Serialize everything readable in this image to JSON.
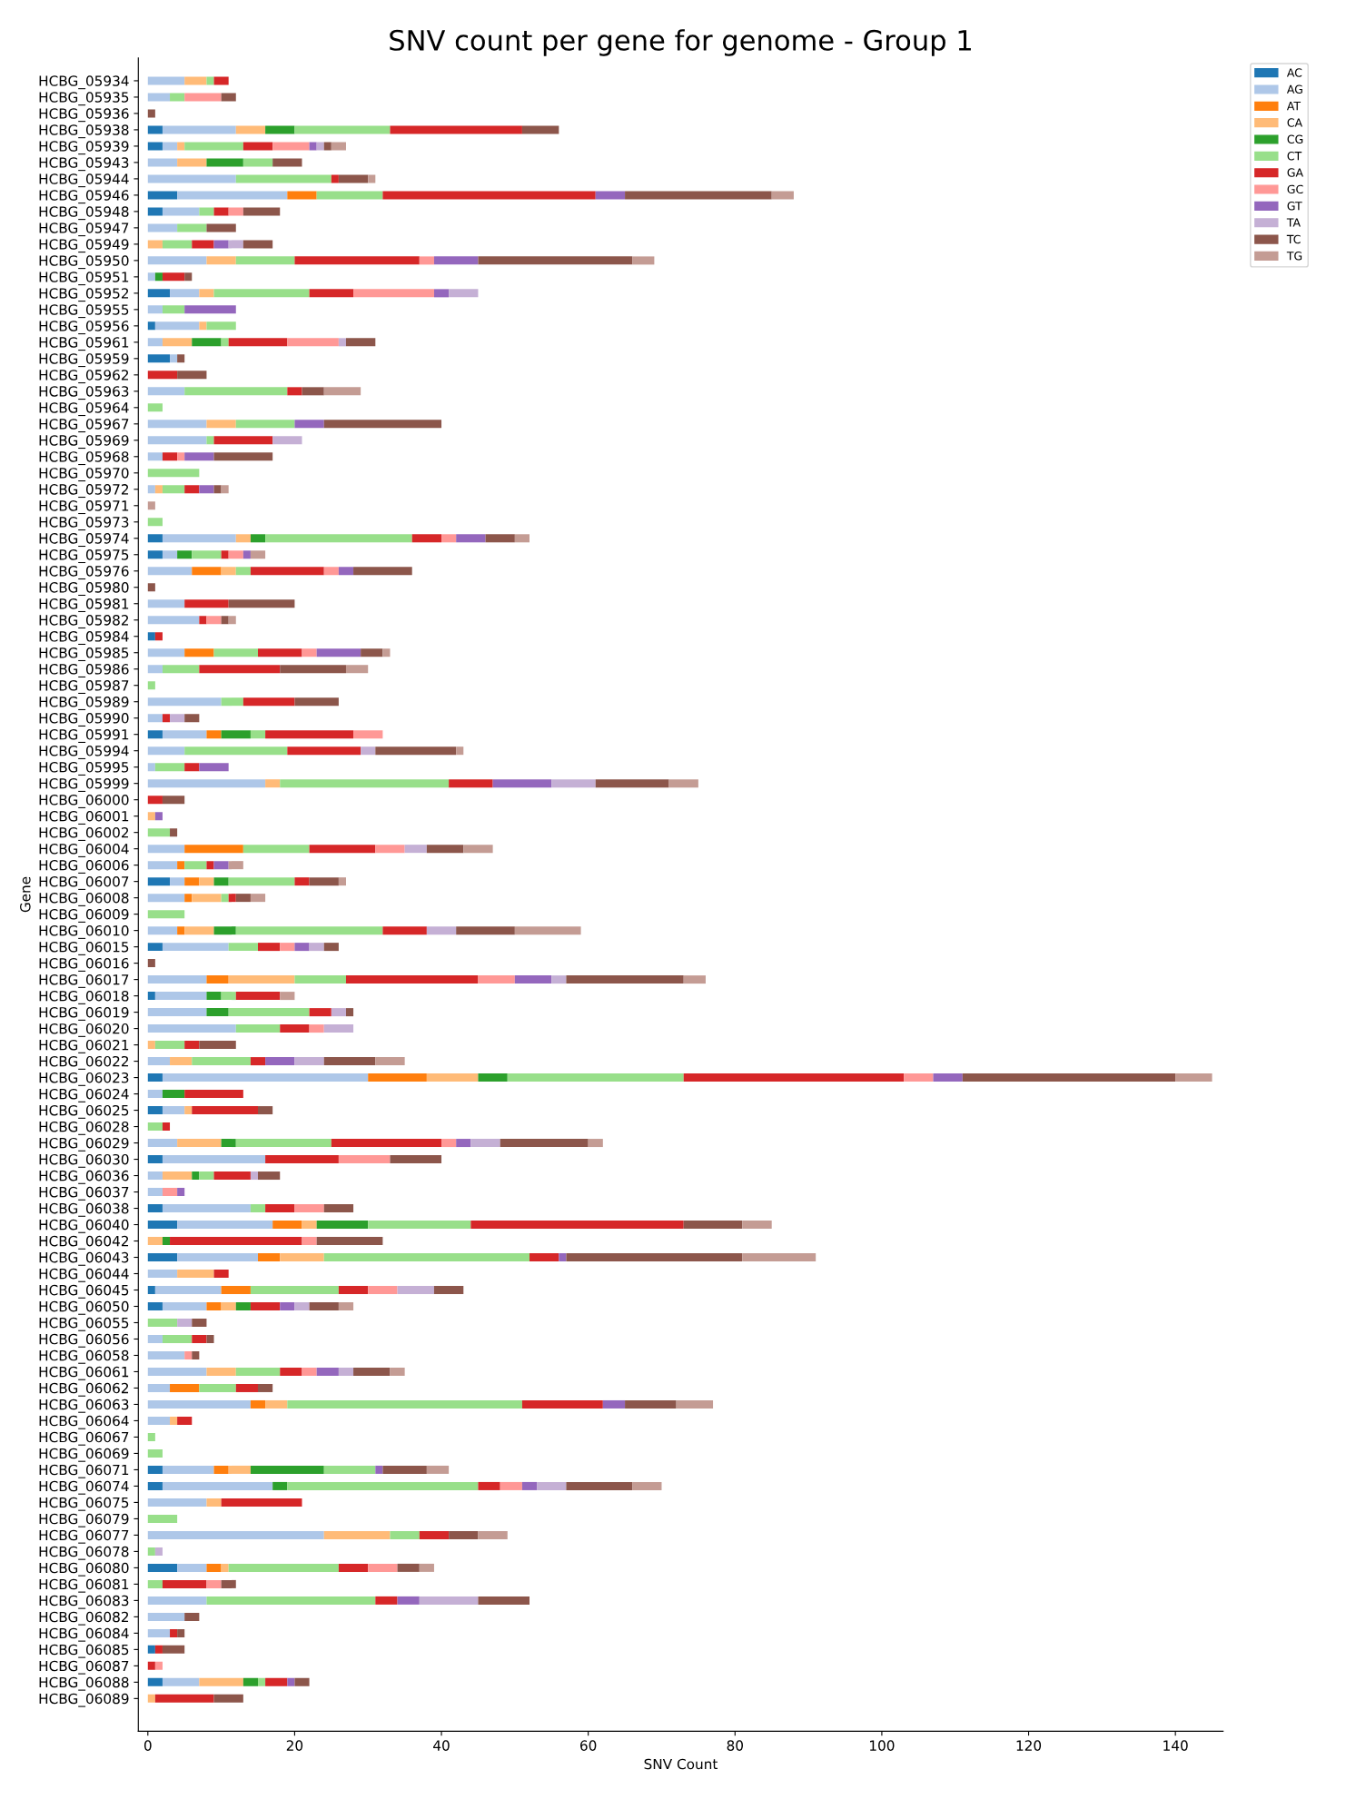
{
  "chart_data": {
    "type": "bar",
    "orientation": "horizontal",
    "stacked": true,
    "title": "SNV count per gene for genome - Group 1",
    "xlabel": "SNV Count",
    "ylabel": "Gene",
    "categories": [
      "HCBG_05934",
      "HCBG_05935",
      "HCBG_05936",
      "HCBG_05938",
      "HCBG_05939",
      "HCBG_05943",
      "HCBG_05944",
      "HCBG_05946",
      "HCBG_05948",
      "HCBG_05947",
      "HCBG_05949",
      "HCBG_05950",
      "HCBG_05951",
      "HCBG_05952",
      "HCBG_05955",
      "HCBG_05956",
      "HCBG_05961",
      "HCBG_05959",
      "HCBG_05962",
      "HCBG_05963",
      "HCBG_05964",
      "HCBG_05967",
      "HCBG_05969",
      "HCBG_05968",
      "HCBG_05970",
      "HCBG_05972",
      "HCBG_05971",
      "HCBG_05973",
      "HCBG_05974",
      "HCBG_05975",
      "HCBG_05976",
      "HCBG_05980",
      "HCBG_05981",
      "HCBG_05982",
      "HCBG_05984",
      "HCBG_05985",
      "HCBG_05986",
      "HCBG_05987",
      "HCBG_05989",
      "HCBG_05990",
      "HCBG_05991",
      "HCBG_05994",
      "HCBG_05995",
      "HCBG_05999",
      "HCBG_06000",
      "HCBG_06001",
      "HCBG_06002",
      "HCBG_06004",
      "HCBG_06006",
      "HCBG_06007",
      "HCBG_06008",
      "HCBG_06009",
      "HCBG_06010",
      "HCBG_06015",
      "HCBG_06016",
      "HCBG_06017",
      "HCBG_06018",
      "HCBG_06019",
      "HCBG_06020",
      "HCBG_06021",
      "HCBG_06022",
      "HCBG_06023",
      "HCBG_06024",
      "HCBG_06025",
      "HCBG_06028",
      "HCBG_06029",
      "HCBG_06030",
      "HCBG_06036",
      "HCBG_06037",
      "HCBG_06038",
      "HCBG_06040",
      "HCBG_06042",
      "HCBG_06043",
      "HCBG_06044",
      "HCBG_06045",
      "HCBG_06050",
      "HCBG_06055",
      "HCBG_06056",
      "HCBG_06058",
      "HCBG_06061",
      "HCBG_06062",
      "HCBG_06063",
      "HCBG_06064",
      "HCBG_06067",
      "HCBG_06069",
      "HCBG_06071",
      "HCBG_06074",
      "HCBG_06075",
      "HCBG_06079",
      "HCBG_06077",
      "HCBG_06078",
      "HCBG_06080",
      "HCBG_06081",
      "HCBG_06083",
      "HCBG_06082",
      "HCBG_06084",
      "HCBG_06085",
      "HCBG_06087",
      "HCBG_06088",
      "HCBG_06089"
    ],
    "series": [
      {
        "name": "AC",
        "color": "#1f77b4",
        "values": [
          0,
          0,
          0,
          2,
          2,
          0,
          0,
          4,
          2,
          0,
          0,
          0,
          0,
          3,
          0,
          1,
          0,
          3,
          0,
          0,
          0,
          0,
          0,
          0,
          0,
          0,
          0,
          0,
          2,
          2,
          0,
          0,
          0,
          0,
          1,
          0,
          0,
          0,
          0,
          0,
          2,
          0,
          0,
          0,
          0,
          0,
          0,
          0,
          0,
          3,
          0,
          0,
          0,
          2,
          0,
          0,
          1,
          0,
          0,
          0,
          0,
          2,
          0,
          2,
          0,
          0,
          2,
          0,
          0,
          2,
          4,
          0,
          4,
          0,
          1,
          2,
          0,
          0,
          0,
          0,
          0,
          0,
          0,
          0,
          0,
          2,
          2,
          0,
          0,
          0,
          0,
          4,
          0,
          0,
          0,
          0,
          1,
          0,
          2,
          0
        ]
      },
      {
        "name": "AG",
        "color": "#aec7e8",
        "values": [
          5,
          3,
          0,
          10,
          2,
          4,
          12,
          15,
          5,
          4,
          0,
          8,
          1,
          4,
          2,
          6,
          2,
          1,
          0,
          5,
          0,
          8,
          8,
          2,
          0,
          1,
          0,
          0,
          10,
          2,
          6,
          0,
          5,
          7,
          0,
          5,
          2,
          0,
          10,
          2,
          6,
          5,
          1,
          16,
          0,
          0,
          0,
          5,
          4,
          2,
          5,
          0,
          4,
          9,
          0,
          8,
          7,
          8,
          12,
          0,
          3,
          28,
          2,
          3,
          0,
          4,
          14,
          2,
          2,
          12,
          13,
          0,
          11,
          4,
          9,
          6,
          0,
          2,
          5,
          8,
          3,
          14,
          3,
          0,
          0,
          7,
          15,
          8,
          0,
          24,
          0,
          4,
          0,
          8,
          5,
          3,
          0,
          0,
          5,
          0
        ]
      },
      {
        "name": "AT",
        "color": "#ff7f0e",
        "values": [
          0,
          0,
          0,
          0,
          0,
          0,
          0,
          4,
          0,
          0,
          0,
          0,
          0,
          0,
          0,
          0,
          0,
          0,
          0,
          0,
          0,
          0,
          0,
          0,
          0,
          0,
          0,
          0,
          0,
          0,
          4,
          0,
          0,
          0,
          0,
          4,
          0,
          0,
          0,
          0,
          2,
          0,
          0,
          0,
          0,
          0,
          0,
          8,
          1,
          2,
          1,
          0,
          1,
          0,
          0,
          3,
          0,
          0,
          0,
          0,
          0,
          8,
          0,
          0,
          0,
          0,
          0,
          0,
          0,
          0,
          4,
          0,
          3,
          0,
          4,
          2,
          0,
          0,
          0,
          0,
          4,
          2,
          0,
          0,
          0,
          2,
          0,
          0,
          0,
          0,
          0,
          2,
          0,
          0,
          0,
          0,
          0,
          0,
          0,
          0
        ]
      },
      {
        "name": "CA",
        "color": "#ffbb78",
        "values": [
          3,
          0,
          0,
          4,
          1,
          4,
          0,
          0,
          0,
          0,
          2,
          4,
          0,
          2,
          0,
          1,
          4,
          0,
          0,
          0,
          0,
          4,
          0,
          0,
          0,
          1,
          0,
          0,
          2,
          0,
          2,
          0,
          0,
          0,
          0,
          0,
          0,
          0,
          0,
          0,
          0,
          0,
          0,
          2,
          0,
          1,
          0,
          0,
          0,
          2,
          4,
          0,
          4,
          0,
          0,
          9,
          0,
          0,
          0,
          1,
          3,
          7,
          0,
          1,
          0,
          6,
          0,
          4,
          0,
          0,
          2,
          2,
          6,
          5,
          0,
          2,
          0,
          0,
          0,
          4,
          0,
          3,
          1,
          0,
          0,
          3,
          0,
          2,
          0,
          9,
          0,
          1,
          0,
          0,
          0,
          0,
          0,
          0,
          6,
          1
        ]
      },
      {
        "name": "CG",
        "color": "#2ca02c",
        "values": [
          0,
          0,
          0,
          4,
          0,
          5,
          0,
          0,
          0,
          0,
          0,
          0,
          1,
          0,
          0,
          0,
          4,
          0,
          0,
          0,
          0,
          0,
          0,
          0,
          0,
          0,
          0,
          0,
          2,
          2,
          0,
          0,
          0,
          0,
          0,
          0,
          0,
          0,
          0,
          0,
          4,
          0,
          0,
          0,
          0,
          0,
          0,
          0,
          0,
          2,
          0,
          0,
          3,
          0,
          0,
          0,
          2,
          3,
          0,
          0,
          0,
          4,
          3,
          0,
          0,
          2,
          0,
          1,
          0,
          0,
          7,
          1,
          0,
          0,
          0,
          2,
          0,
          0,
          0,
          0,
          0,
          0,
          0,
          0,
          0,
          10,
          2,
          0,
          0,
          0,
          0,
          0,
          0,
          0,
          0,
          0,
          0,
          0,
          2,
          0
        ]
      },
      {
        "name": "CT",
        "color": "#98df8a",
        "values": [
          1,
          2,
          0,
          13,
          8,
          4,
          13,
          9,
          2,
          4,
          4,
          8,
          0,
          13,
          3,
          4,
          1,
          0,
          0,
          14,
          2,
          8,
          1,
          0,
          7,
          3,
          0,
          2,
          20,
          4,
          2,
          0,
          0,
          0,
          0,
          6,
          5,
          1,
          3,
          0,
          2,
          14,
          4,
          23,
          0,
          0,
          3,
          9,
          3,
          9,
          1,
          5,
          20,
          4,
          0,
          7,
          2,
          11,
          6,
          4,
          8,
          24,
          0,
          0,
          2,
          13,
          0,
          2,
          0,
          2,
          14,
          0,
          28,
          0,
          12,
          0,
          4,
          4,
          0,
          6,
          5,
          32,
          0,
          1,
          2,
          7,
          26,
          0,
          4,
          4,
          1,
          15,
          2,
          23,
          0,
          0,
          0,
          0,
          1,
          0
        ]
      },
      {
        "name": "GA",
        "color": "#d62728",
        "values": [
          2,
          0,
          0,
          18,
          4,
          0,
          1,
          29,
          2,
          0,
          3,
          17,
          3,
          6,
          0,
          0,
          8,
          0,
          4,
          2,
          0,
          0,
          8,
          2,
          0,
          2,
          0,
          0,
          4,
          1,
          10,
          0,
          6,
          1,
          1,
          6,
          11,
          0,
          7,
          1,
          12,
          10,
          2,
          6,
          2,
          0,
          0,
          9,
          1,
          2,
          1,
          0,
          6,
          3,
          0,
          18,
          6,
          3,
          4,
          2,
          2,
          30,
          8,
          9,
          1,
          15,
          10,
          5,
          0,
          4,
          29,
          18,
          4,
          2,
          4,
          4,
          0,
          2,
          0,
          3,
          3,
          11,
          2,
          0,
          0,
          0,
          3,
          11,
          0,
          4,
          0,
          4,
          6,
          3,
          0,
          1,
          1,
          1,
          3,
          8
        ]
      },
      {
        "name": "GC",
        "color": "#ff9896",
        "values": [
          0,
          5,
          0,
          0,
          5,
          0,
          0,
          0,
          2,
          0,
          0,
          2,
          0,
          11,
          0,
          0,
          7,
          0,
          0,
          0,
          0,
          0,
          0,
          1,
          0,
          0,
          0,
          0,
          2,
          2,
          2,
          0,
          0,
          2,
          0,
          2,
          0,
          0,
          0,
          0,
          4,
          0,
          0,
          0,
          0,
          0,
          0,
          4,
          0,
          0,
          0,
          0,
          0,
          2,
          0,
          5,
          0,
          0,
          2,
          0,
          0,
          4,
          0,
          0,
          0,
          2,
          7,
          0,
          2,
          4,
          0,
          2,
          0,
          0,
          4,
          0,
          0,
          0,
          1,
          2,
          0,
          0,
          0,
          0,
          0,
          0,
          3,
          0,
          0,
          0,
          0,
          4,
          2,
          0,
          0,
          0,
          0,
          1,
          0,
          0
        ]
      },
      {
        "name": "GT",
        "color": "#9467bd",
        "values": [
          0,
          0,
          0,
          0,
          1,
          0,
          0,
          4,
          0,
          0,
          2,
          6,
          0,
          2,
          7,
          0,
          0,
          0,
          0,
          0,
          0,
          4,
          0,
          4,
          0,
          2,
          0,
          0,
          4,
          1,
          2,
          0,
          0,
          0,
          0,
          6,
          0,
          0,
          0,
          0,
          0,
          0,
          4,
          8,
          0,
          1,
          0,
          0,
          2,
          0,
          0,
          0,
          0,
          2,
          0,
          5,
          0,
          0,
          0,
          0,
          4,
          4,
          0,
          0,
          0,
          2,
          0,
          0,
          1,
          0,
          0,
          0,
          1,
          0,
          0,
          2,
          0,
          0,
          0,
          3,
          0,
          3,
          0,
          0,
          0,
          1,
          2,
          0,
          0,
          0,
          0,
          0,
          0,
          3,
          0,
          0,
          0,
          0,
          1,
          0
        ]
      },
      {
        "name": "TA",
        "color": "#c5b0d5",
        "values": [
          0,
          0,
          0,
          0,
          1,
          0,
          0,
          0,
          0,
          0,
          2,
          0,
          0,
          4,
          0,
          0,
          1,
          0,
          0,
          0,
          0,
          0,
          4,
          0,
          0,
          0,
          0,
          0,
          0,
          0,
          0,
          0,
          0,
          0,
          0,
          0,
          0,
          0,
          0,
          2,
          0,
          2,
          0,
          6,
          0,
          0,
          0,
          3,
          0,
          0,
          0,
          0,
          4,
          2,
          0,
          2,
          0,
          2,
          4,
          0,
          4,
          0,
          0,
          0,
          0,
          4,
          0,
          1,
          0,
          0,
          0,
          0,
          0,
          0,
          5,
          2,
          2,
          0,
          0,
          2,
          0,
          0,
          0,
          0,
          0,
          0,
          4,
          0,
          0,
          0,
          1,
          0,
          0,
          8,
          0,
          0,
          0,
          0,
          0,
          0
        ]
      },
      {
        "name": "TC",
        "color": "#8c564b",
        "values": [
          0,
          2,
          1,
          5,
          1,
          4,
          4,
          20,
          5,
          4,
          4,
          21,
          1,
          0,
          0,
          0,
          4,
          1,
          4,
          3,
          0,
          16,
          0,
          8,
          0,
          1,
          0,
          0,
          4,
          0,
          8,
          1,
          9,
          1,
          0,
          3,
          9,
          0,
          6,
          2,
          0,
          11,
          0,
          10,
          3,
          0,
          1,
          5,
          0,
          4,
          2,
          0,
          8,
          2,
          1,
          16,
          0,
          1,
          0,
          5,
          7,
          29,
          0,
          2,
          0,
          12,
          7,
          3,
          0,
          4,
          8,
          9,
          24,
          0,
          4,
          4,
          2,
          1,
          1,
          5,
          2,
          7,
          0,
          0,
          0,
          6,
          9,
          0,
          0,
          4,
          0,
          3,
          2,
          7,
          2,
          1,
          3,
          0,
          2,
          4
        ]
      },
      {
        "name": "TG",
        "color": "#c49c94",
        "values": [
          0,
          0,
          0,
          0,
          2,
          0,
          1,
          3,
          0,
          0,
          0,
          3,
          0,
          0,
          0,
          0,
          0,
          0,
          0,
          5,
          0,
          0,
          0,
          0,
          0,
          1,
          1,
          0,
          2,
          2,
          0,
          0,
          0,
          1,
          0,
          1,
          3,
          0,
          0,
          0,
          0,
          1,
          0,
          4,
          0,
          0,
          0,
          4,
          2,
          1,
          2,
          0,
          9,
          0,
          0,
          3,
          2,
          0,
          0,
          0,
          4,
          5,
          0,
          0,
          0,
          2,
          0,
          0,
          0,
          0,
          4,
          0,
          10,
          0,
          0,
          2,
          0,
          0,
          0,
          2,
          0,
          5,
          0,
          0,
          0,
          3,
          4,
          0,
          0,
          4,
          0,
          2,
          0,
          0,
          0,
          0,
          0,
          0,
          0,
          0
        ]
      }
    ],
    "xlim": [
      -1.3,
      146.5
    ],
    "xticks": [
      0,
      20,
      40,
      60,
      80,
      100,
      120,
      140
    ],
    "grid": false,
    "legend": "top right"
  }
}
